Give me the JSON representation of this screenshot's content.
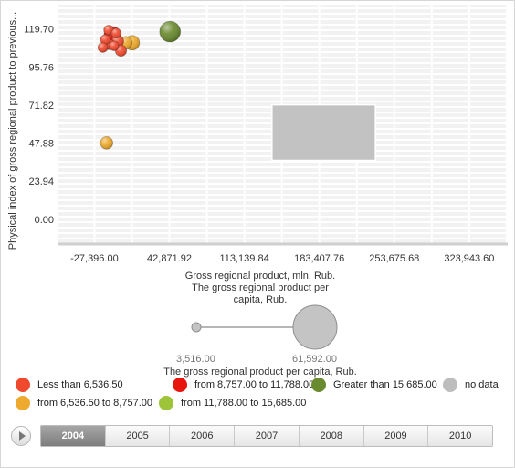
{
  "chart_data": {
    "type": "scatter",
    "subtype": "bubble",
    "xlabel_lines": [
      "Gross regional product, mln. Rub.",
      "The gross regional product per",
      "capita, Rub."
    ],
    "ylabel": "Physical index of gross regional product to previous...",
    "x_ticks": [
      -27396.0,
      42871.92,
      113139.84,
      183407.76,
      253675.68,
      323943.6
    ],
    "x_tick_labels": [
      "-27,396.00",
      "42,871.92",
      "113,139.84",
      "183,407.76",
      "253,675.68",
      "323,943.60"
    ],
    "xlim": [
      -62000,
      360000
    ],
    "y_ticks": [
      0.0,
      23.94,
      47.88,
      71.82,
      95.76,
      119.7
    ],
    "y_tick_labels": [
      "0.00",
      "23.94",
      "47.88",
      "71.82",
      "95.76",
      "119.70"
    ],
    "ylim": [
      -15,
      135
    ],
    "grid": true,
    "size_legend": {
      "title": "The gross regional product per capita, Rub.",
      "min_label": "3,516.00",
      "max_label": "61,592.00",
      "min_value": 3516,
      "max_value": 61592
    },
    "highlight_region": {
      "x": [
        139000,
        236000
      ],
      "y": [
        37,
        72
      ]
    },
    "color_legend": [
      {
        "label": "Less than 6,536.50",
        "color": "#f04a2e"
      },
      {
        "label": "from 8,757.00 to 11,788.00",
        "color": "#e8150f"
      },
      {
        "label": "Greater than 15,685.00",
        "color": "#6a8a30"
      },
      {
        "label": "no data",
        "color": "#bdbdbd"
      },
      {
        "label": "from 6,536.50 to 8,757.00",
        "color": "#eeaa2e"
      },
      {
        "label": "from 11,788.00 to 15,685.00",
        "color": "#9ec43a"
      }
    ],
    "points": [
      {
        "x": 43500,
        "y": 118,
        "size": 15000,
        "color": "#6a8a30"
      },
      {
        "x": 8000,
        "y": 111,
        "size": 8000,
        "color": "#eeaa2e"
      },
      {
        "x": 2000,
        "y": 111,
        "size": 6000,
        "color": "#eeaa2e"
      },
      {
        "x": -10500,
        "y": 116,
        "size": 10000,
        "color": "#e8150f"
      },
      {
        "x": -5500,
        "y": 112,
        "size": 5500,
        "color": "#f04a2e"
      },
      {
        "x": -2500,
        "y": 106,
        "size": 5000,
        "color": "#f04a2e"
      },
      {
        "x": -13500,
        "y": 110,
        "size": 4500,
        "color": "#f04a2e"
      },
      {
        "x": -17000,
        "y": 113,
        "size": 4200,
        "color": "#f04a2e"
      },
      {
        "x": -19500,
        "y": 108,
        "size": 4000,
        "color": "#f04a2e"
      },
      {
        "x": -14000,
        "y": 119,
        "size": 4000,
        "color": "#f04a2e"
      },
      {
        "x": -9000,
        "y": 109,
        "size": 3800,
        "color": "#f04a2e"
      },
      {
        "x": -7000,
        "y": 117,
        "size": 4000,
        "color": "#f04a2e"
      },
      {
        "x": -16000,
        "y": 48,
        "size": 6000,
        "color": "#eeaa2e"
      }
    ]
  },
  "timeline": {
    "years": [
      "2004",
      "2005",
      "2006",
      "2007",
      "2008",
      "2009",
      "2010"
    ],
    "active_index": 0
  }
}
